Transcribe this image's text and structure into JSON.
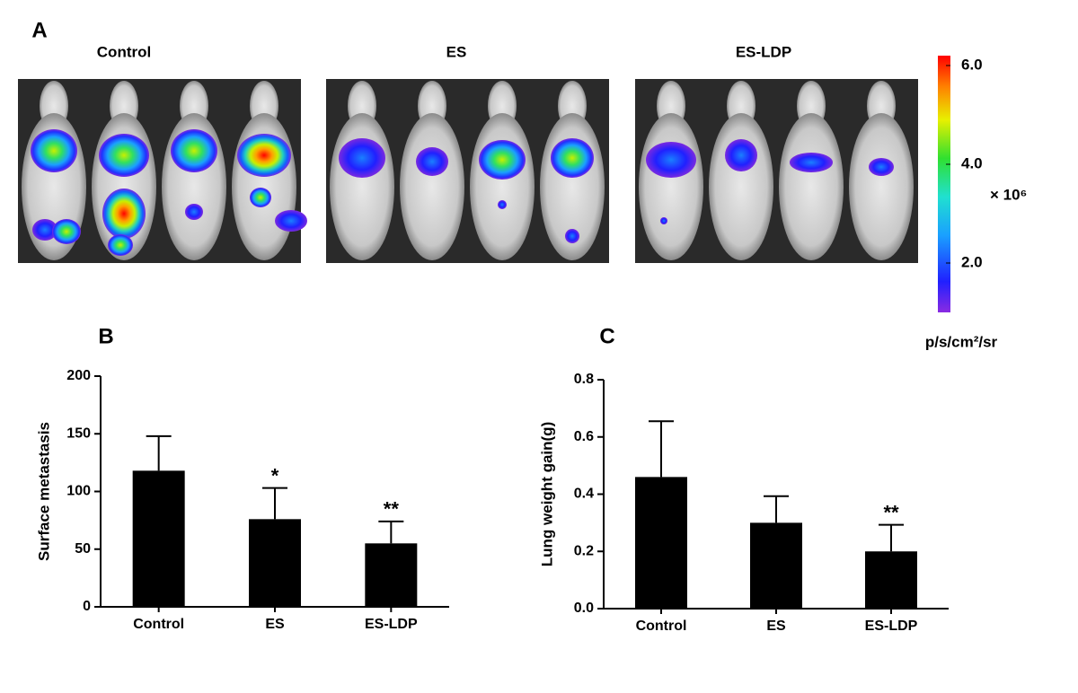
{
  "panels": [
    "A",
    "B",
    "C"
  ],
  "imaging": {
    "groups": [
      "Control",
      "ES",
      "ES-LDP"
    ],
    "colorbar": {
      "lim": [
        1.0,
        6.2
      ],
      "ticks": [
        {
          "value": 2,
          "label": "2.0"
        },
        {
          "value": 4,
          "label": "4.0"
        },
        {
          "value": 6,
          "label": "6.0"
        }
      ],
      "multiplier": "× 10⁶",
      "unit": "p/s/cm²/sr"
    }
  },
  "chart_data": [
    {
      "type": "bar",
      "y_label": "Surface metastasis",
      "categories": [
        "Control",
        "ES",
        "ES-LDP"
      ],
      "values": [
        118,
        76,
        55
      ],
      "errors": [
        30,
        27,
        19
      ],
      "significance": [
        null,
        "*",
        "**"
      ],
      "color": "#000000",
      "ylim": [
        0,
        200
      ],
      "yticks": [
        0,
        50,
        100,
        150,
        200
      ]
    },
    {
      "type": "bar",
      "y_label": "Lung weight gain(g)",
      "categories": [
        "Control",
        "ES",
        "ES-LDP"
      ],
      "values": [
        0.46,
        0.3,
        0.2
      ],
      "errors": [
        0.195,
        0.093,
        0.093
      ],
      "significance": [
        null,
        null,
        "**"
      ],
      "color": "#000000",
      "ylim": [
        0,
        0.8
      ],
      "yticks": [
        {
          "value": 0,
          "label": "0.0"
        },
        0.2,
        0.4,
        0.6,
        0.8
      ]
    }
  ]
}
